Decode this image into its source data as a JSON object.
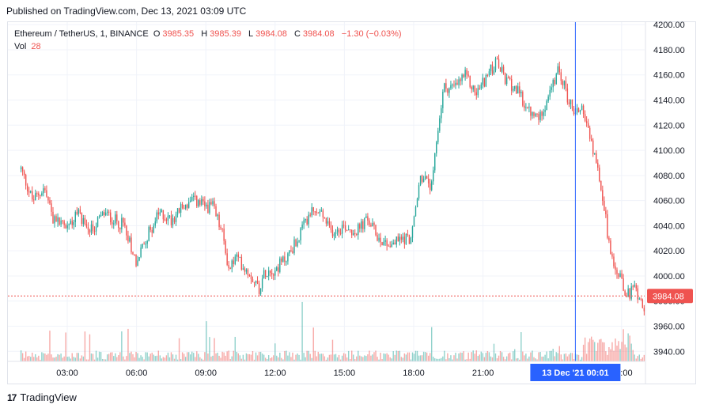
{
  "header": {
    "published": "Published on TradingView.com, Dec 13, 2021 03:09 UTC"
  },
  "legend": {
    "symbol": "Ethereum / TetherUS, 1, BINANCE",
    "open_label": "O",
    "open": "3985.35",
    "high_label": "H",
    "high": "3985.39",
    "low_label": "L",
    "low": "3984.08",
    "close_label": "C",
    "close": "3984.08",
    "change": "−1.30 (−0.03%)",
    "vol_label": "Vol",
    "vol": "28"
  },
  "footer": {
    "logo_text": "TradingView",
    "logo_icon": "tradingview-logo-icon"
  },
  "colors": {
    "up": "#26a69a",
    "down": "#ef5350",
    "crosshair": "#2962ff",
    "price_line": "#ef5350",
    "grid": "#f0f3fa"
  },
  "chart_data": {
    "type": "candlestick",
    "title": "",
    "xlabel": "",
    "ylabel": "",
    "x_ticks": [
      "03:00",
      "06:00",
      "09:00",
      "12:00",
      "15:00",
      "18:00",
      "21:00",
      "03:00"
    ],
    "y_ticks": [
      3940,
      3960,
      3980,
      4000,
      4020,
      4040,
      4060,
      4080,
      4100,
      4120,
      4140,
      4160,
      4180,
      4200
    ],
    "ylim": [
      3932,
      4202
    ],
    "last_price": "3984.08",
    "last_price_value": 3984.08,
    "crosshair_label": "13 Dec '21   00:01",
    "grid": true,
    "price_path": [
      {
        "h": 0,
        "p": 4085
      },
      {
        "h": 0.5,
        "p": 4060
      },
      {
        "h": 1.0,
        "p": 4070
      },
      {
        "h": 1.4,
        "p": 4045
      },
      {
        "h": 2.0,
        "p": 4040
      },
      {
        "h": 2.5,
        "p": 4050
      },
      {
        "h": 3.0,
        "p": 4035
      },
      {
        "h": 3.6,
        "p": 4050
      },
      {
        "h": 4.0,
        "p": 4045
      },
      {
        "h": 4.5,
        "p": 4040
      },
      {
        "h": 5.0,
        "p": 4010
      },
      {
        "h": 5.4,
        "p": 4030
      },
      {
        "h": 6.0,
        "p": 4050
      },
      {
        "h": 6.5,
        "p": 4045
      },
      {
        "h": 7.0,
        "p": 4055
      },
      {
        "h": 7.5,
        "p": 4060
      },
      {
        "h": 8.0,
        "p": 4055
      },
      {
        "h": 8.3,
        "p": 4055
      },
      {
        "h": 8.7,
        "p": 4035
      },
      {
        "h": 9.0,
        "p": 4005
      },
      {
        "h": 9.3,
        "p": 4015
      },
      {
        "h": 10.0,
        "p": 4000
      },
      {
        "h": 10.3,
        "p": 3990
      },
      {
        "h": 10.6,
        "p": 4005
      },
      {
        "h": 11.0,
        "p": 4005
      },
      {
        "h": 11.5,
        "p": 4015
      },
      {
        "h": 12.0,
        "p": 4030
      },
      {
        "h": 12.5,
        "p": 4050
      },
      {
        "h": 13.0,
        "p": 4050
      },
      {
        "h": 13.4,
        "p": 4035
      },
      {
        "h": 14.0,
        "p": 4040
      },
      {
        "h": 14.5,
        "p": 4035
      },
      {
        "h": 15.0,
        "p": 4045
      },
      {
        "h": 15.5,
        "p": 4030
      },
      {
        "h": 16.0,
        "p": 4025
      },
      {
        "h": 16.5,
        "p": 4030
      },
      {
        "h": 16.9,
        "p": 4030
      },
      {
        "h": 17.3,
        "p": 4080
      },
      {
        "h": 17.8,
        "p": 4070
      },
      {
        "h": 18.0,
        "p": 4110
      },
      {
        "h": 18.3,
        "p": 4150
      },
      {
        "h": 18.8,
        "p": 4150
      },
      {
        "h": 19.2,
        "p": 4160
      },
      {
        "h": 19.7,
        "p": 4145
      },
      {
        "h": 20.2,
        "p": 4160
      },
      {
        "h": 20.6,
        "p": 4170
      },
      {
        "h": 21.0,
        "p": 4155
      },
      {
        "h": 21.4,
        "p": 4150
      },
      {
        "h": 22.0,
        "p": 4130
      },
      {
        "h": 22.4,
        "p": 4125
      },
      {
        "h": 23.0,
        "p": 4150
      },
      {
        "h": 23.3,
        "p": 4165
      },
      {
        "h": 23.7,
        "p": 4140
      },
      {
        "h": 24.0,
        "p": 4130
      },
      {
        "h": 24.3,
        "p": 4135
      },
      {
        "h": 24.6,
        "p": 4110
      },
      {
        "h": 24.9,
        "p": 4090
      },
      {
        "h": 25.2,
        "p": 4060
      },
      {
        "h": 25.5,
        "p": 4020
      },
      {
        "h": 25.8,
        "p": 4005
      },
      {
        "h": 26.2,
        "p": 3985
      },
      {
        "h": 26.6,
        "p": 3990
      },
      {
        "h": 27.0,
        "p": 3975
      },
      {
        "h": 27.3,
        "p": 3980
      },
      {
        "h": 27.6,
        "p": 3985
      }
    ]
  }
}
